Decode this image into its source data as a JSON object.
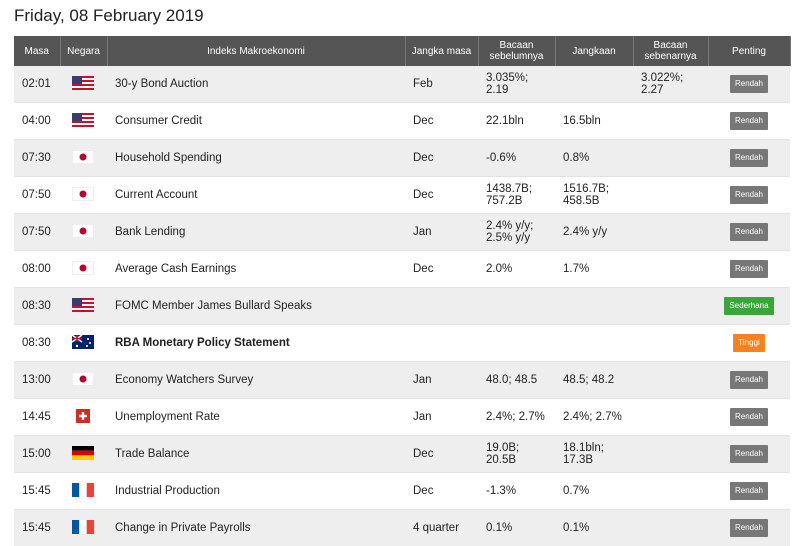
{
  "header": {
    "title": "Friday, 08 February 2019"
  },
  "table": {
    "columns": [
      "Masa",
      "Negara",
      "Indeks Makroekonomi",
      "Jangka masa",
      "Bacaan sebelumnya",
      "Jangkaan",
      "Bacaan sebenarnya",
      "Penting"
    ],
    "rows": [
      [
        "02:01",
        "30-y Bond Auction",
        "Feb",
        [
          "3.035%;",
          "2.19"
        ],
        null,
        [
          "3.022%;",
          "2.27"
        ],
        "Rendah"
      ],
      [
        "04:00",
        "Consumer Credit",
        "Dec",
        "22.1bln",
        "16.5bln",
        null,
        "Rendah"
      ],
      [
        "07:30",
        "Household Spending",
        "Dec",
        "-0.6%",
        "0.8%",
        null,
        "Rendah"
      ],
      [
        "07:50",
        "Current Account",
        "Dec",
        [
          "1438.7B;",
          "757.2B"
        ],
        [
          "1516.7B;",
          "458.5B"
        ],
        null,
        "Rendah"
      ],
      [
        "07:50",
        "Bank Lending",
        "Jan",
        [
          "2.4% y/y;",
          "2.5% y/y"
        ],
        "2.4% y/y",
        null,
        "Rendah"
      ],
      [
        "08:00",
        "Average Cash Earnings",
        "Dec",
        "2.0%",
        "1.7%",
        null,
        "Rendah"
      ],
      [
        "08:30",
        "FOMC Member James Bullard Speaks",
        null,
        null,
        null,
        null,
        "Sederhana"
      ],
      [
        "08:30",
        "RBA Monetary Policy Statement",
        null,
        null,
        null,
        null,
        "Tinggi"
      ],
      [
        "13:00",
        "Economy Watchers Survey",
        "Jan",
        "48.0; 48.5",
        "48.5; 48.2",
        null,
        "Rendah"
      ],
      [
        "14:45",
        "Unemployment Rate",
        "Jan",
        "2.4%; 2.7%",
        "2.4%; 2.7%",
        null,
        "Rendah"
      ],
      [
        "15:00",
        "Trade Balance",
        "Dec",
        [
          "19.0B;",
          "20.5B"
        ],
        [
          "18.1bln;",
          "17.3B"
        ],
        null,
        "Rendah"
      ],
      [
        "15:45",
        "Industrial Production",
        "Dec",
        "-1.3%",
        "0.7%",
        null,
        "Rendah"
      ],
      [
        "15:45",
        "Change in Private Payrolls",
        "4 quarter",
        "0.1%",
        "0.1%",
        null,
        "Rendah"
      ]
    ]
  }
}
